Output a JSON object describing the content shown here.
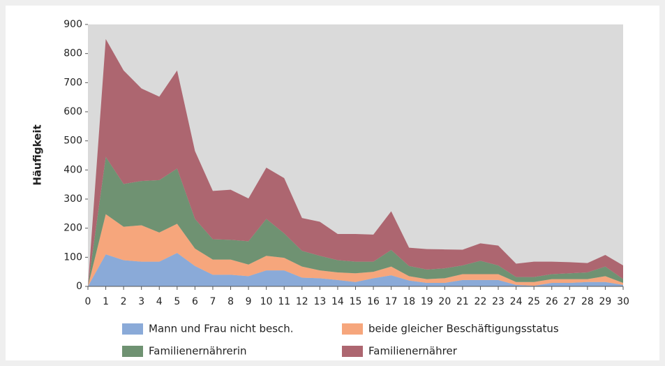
{
  "chart_data": {
    "type": "stacked-area",
    "y_label": "Häufigkeit",
    "x": [
      0,
      1,
      2,
      3,
      4,
      5,
      6,
      7,
      8,
      9,
      10,
      11,
      12,
      13,
      14,
      15,
      16,
      17,
      18,
      19,
      20,
      21,
      22,
      23,
      24,
      25,
      26,
      27,
      28,
      29,
      30
    ],
    "xlim": [
      0,
      30
    ],
    "xticks": [
      0,
      1,
      2,
      3,
      4,
      5,
      6,
      7,
      8,
      9,
      10,
      11,
      12,
      13,
      14,
      15,
      16,
      17,
      18,
      19,
      20,
      21,
      22,
      23,
      24,
      25,
      26,
      27,
      28,
      29,
      30
    ],
    "ylim": [
      0,
      900
    ],
    "yticks": [
      0,
      100,
      200,
      300,
      400,
      500,
      600,
      700,
      800,
      900
    ],
    "series": [
      {
        "name": "Mann und Frau nicht besch.",
        "color": "#8aaad8",
        "values": [
          0,
          110,
          90,
          85,
          85,
          115,
          70,
          40,
          40,
          35,
          55,
          55,
          30,
          28,
          22,
          15,
          28,
          38,
          20,
          12,
          12,
          22,
          22,
          22,
          5,
          2,
          12,
          12,
          15,
          15,
          5
        ]
      },
      {
        "name": "beide gleicher Beschäftigungsstatus",
        "color": "#f6a67c",
        "values": [
          0,
          138,
          115,
          125,
          100,
          100,
          60,
          52,
          52,
          40,
          50,
          43,
          38,
          27,
          26,
          30,
          22,
          30,
          15,
          13,
          16,
          20,
          20,
          20,
          10,
          13,
          13,
          13,
          10,
          20,
          7
        ]
      },
      {
        "name": "Familienernährerin",
        "color": "#6f9272",
        "values": [
          0,
          197,
          147,
          152,
          180,
          190,
          102,
          70,
          68,
          80,
          127,
          84,
          54,
          50,
          42,
          40,
          35,
          57,
          35,
          33,
          34,
          30,
          46,
          30,
          17,
          17,
          17,
          20,
          23,
          33,
          13
        ]
      },
      {
        "name": "Familienernährer",
        "color": "#ad6670",
        "values": [
          0,
          405,
          390,
          318,
          287,
          337,
          233,
          166,
          172,
          147,
          176,
          190,
          113,
          117,
          90,
          95,
          93,
          133,
          63,
          70,
          65,
          54,
          60,
          68,
          46,
          53,
          43,
          38,
          32,
          40,
          47
        ]
      }
    ]
  }
}
